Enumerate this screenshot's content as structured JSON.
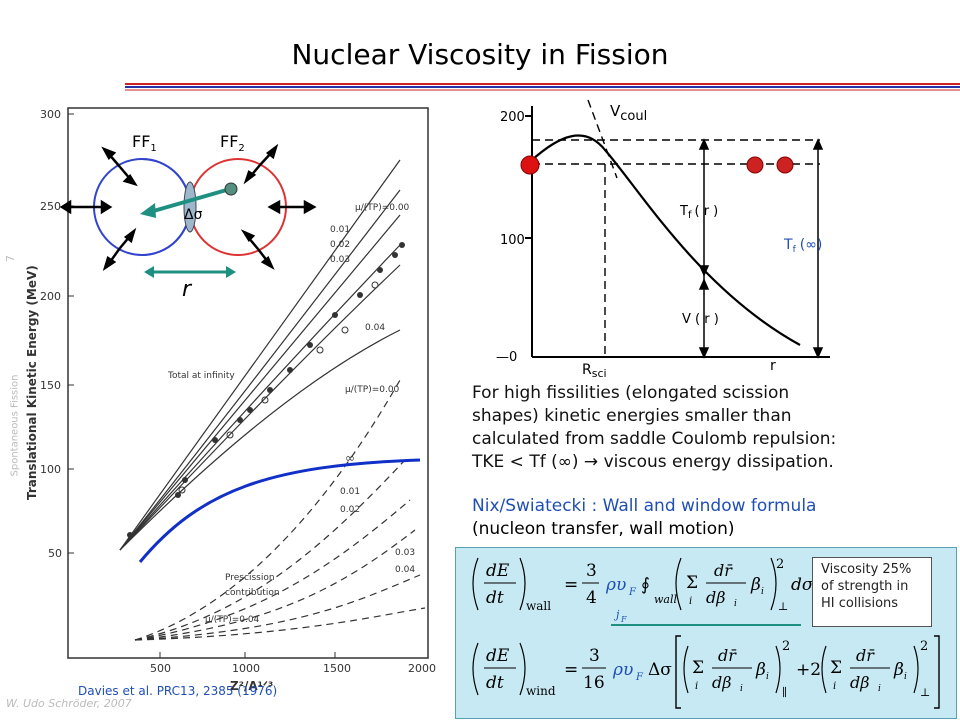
{
  "slide": {
    "title": "Nuclear Viscosity in Fission",
    "side_label": "Spontaneous Fission",
    "page_number": "7",
    "author": "W. Udo Schröder, 2007",
    "citation": "Davies et al. PRC13, 2385 (1976)",
    "colors": {
      "rule_red": "#cc2222",
      "rule_blue": "#2233aa",
      "accent_blue": "#1f4fb5",
      "formula_bg": "#c7e9f3"
    }
  },
  "left_plot": {
    "ylabel": "Translational Kinetic Energy  (MeV)",
    "xlabel": "Z²/A¹ᐟ³",
    "yticks": [
      "300",
      "250",
      "200",
      "150",
      "100",
      "50"
    ],
    "xticks": [
      "500",
      "1000",
      "1500",
      "2000"
    ],
    "ann_total": "Total at infinity",
    "ann_mu_top": "μ/(TP)=0.00",
    "ann_mu_mid": "μ/(TP)=0.00",
    "ann_mu_bot": "μ/(TP)=0.04",
    "ann_prescission_1": "Prescission",
    "ann_prescission_2": "contribution",
    "curve_labels_top": [
      "0.01",
      "0.02",
      "0.03"
    ],
    "curve_label_004_top": "0.04",
    "curve_label_inf": "∞",
    "curve_labels_bottom": [
      "0.01",
      "0.02"
    ],
    "curve_labels_bottom_low": [
      "0.03",
      "0.04"
    ],
    "ff1": "FF",
    "ff1_sub": "1",
    "ff2": "FF",
    "ff2_sub": "2",
    "delta_sigma": "Δσ",
    "r_label": "r"
  },
  "right_plot": {
    "y200": "200",
    "y100": "100",
    "y0": "—0",
    "vcoul": "V",
    "vcoul_sub": "coul",
    "tfr": "T",
    "tfr_sub": "f",
    "tfr_tail": "( r )",
    "vr": "V ( r )",
    "rsci": "R",
    "rsci_sub": "sci",
    "r": "r",
    "tf_inf": "T",
    "tf_inf_sub": "f",
    "tf_inf_tail": "(∞)"
  },
  "text": {
    "para1_lines": [
      "For high fissilities (elongated scission",
      "shapes) kinetic energies smaller than",
      "calculated from saddle Coulomb repulsion:",
      "TKE < Tf (∞) → viscous energy dissipation."
    ],
    "para2_line1": "Nix/Swiatecki : Wall and window formula",
    "para2_line2": "(nucleon transfer, wall motion)"
  },
  "formula": {
    "note": "Viscosity 25% of strength in HI collisions",
    "note_lines": [
      "Viscosity 25%",
      "of strength in",
      "HI collisions"
    ],
    "wall_frac_num": "3",
    "wall_frac_den": "4",
    "wind_frac_num": "3",
    "wind_frac_den": "16",
    "sub_wall": "wall",
    "sub_wind": "wind"
  }
}
